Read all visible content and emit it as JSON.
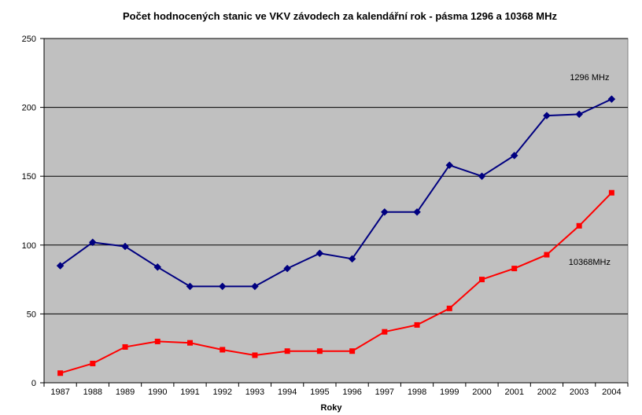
{
  "chart_data": {
    "type": "line",
    "title": "Počet hodnocených stanic ve VKV závodech za kalendářní rok - pásma 1296 a 10368 MHz",
    "xlabel": "Roky",
    "ylabel": "",
    "ylim": [
      0,
      250
    ],
    "yticks": [
      0,
      50,
      100,
      150,
      200,
      250
    ],
    "grid": true,
    "legend": "none",
    "categories": [
      "1987",
      "1988",
      "1989",
      "1990",
      "1991",
      "1992",
      "1993",
      "1994",
      "1995",
      "1996",
      "1997",
      "1998",
      "1999",
      "2000",
      "2001",
      "2002",
      "2003",
      "2004"
    ],
    "series": [
      {
        "name": "1296 MHz",
        "color": "#000080",
        "marker": "diamond",
        "values": [
          85,
          102,
          99,
          84,
          70,
          70,
          70,
          83,
          94,
          90,
          124,
          124,
          158,
          150,
          165,
          194,
          195,
          206
        ]
      },
      {
        "name": "10368MHz",
        "color": "#ff0000",
        "marker": "square",
        "values": [
          7,
          14,
          26,
          30,
          29,
          24,
          20,
          23,
          23,
          23,
          37,
          42,
          54,
          75,
          83,
          93,
          114,
          138
        ]
      }
    ]
  },
  "colors": {
    "plot_background": "#c0c0c0",
    "gridline": "#000000"
  }
}
